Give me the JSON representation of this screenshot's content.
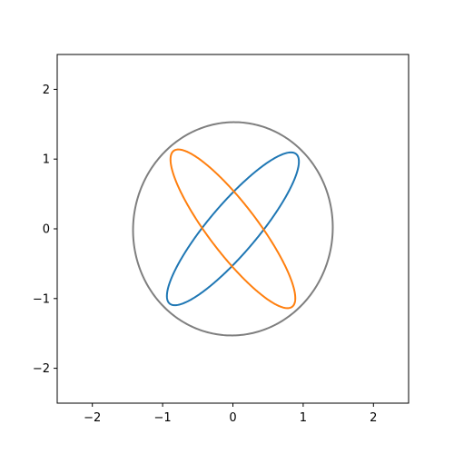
{
  "chart_data": {
    "type": "line",
    "title": "",
    "xlabel": "",
    "ylabel": "",
    "xlim": [
      -2.5,
      2.5
    ],
    "ylim": [
      -2.5,
      2.5
    ],
    "xticks": [
      -2,
      -1,
      0,
      1,
      2
    ],
    "yticks": [
      -2,
      -1,
      0,
      1,
      2
    ],
    "xtick_labels": [
      "−2",
      "−1",
      "0",
      "1",
      "2"
    ],
    "ytick_labels": [
      "−2",
      "−1",
      "0",
      "1",
      "2"
    ],
    "grid": false,
    "legend": false,
    "series": [
      {
        "kind": "ellipse",
        "color": "#1f77b4",
        "center": [
          0,
          0
        ],
        "semi_major": 1.4,
        "semi_minor": 0.35,
        "angle_deg": 50
      },
      {
        "kind": "ellipse",
        "color": "#ff7f0e",
        "center": [
          0,
          0
        ],
        "semi_major": 1.4,
        "semi_minor": 0.35,
        "angle_deg": -53
      },
      {
        "kind": "ellipse",
        "color": "#7f7f7f",
        "center": [
          0,
          0
        ],
        "semi_major": 1.53,
        "semi_minor": 1.42,
        "angle_deg": 85
      }
    ]
  }
}
